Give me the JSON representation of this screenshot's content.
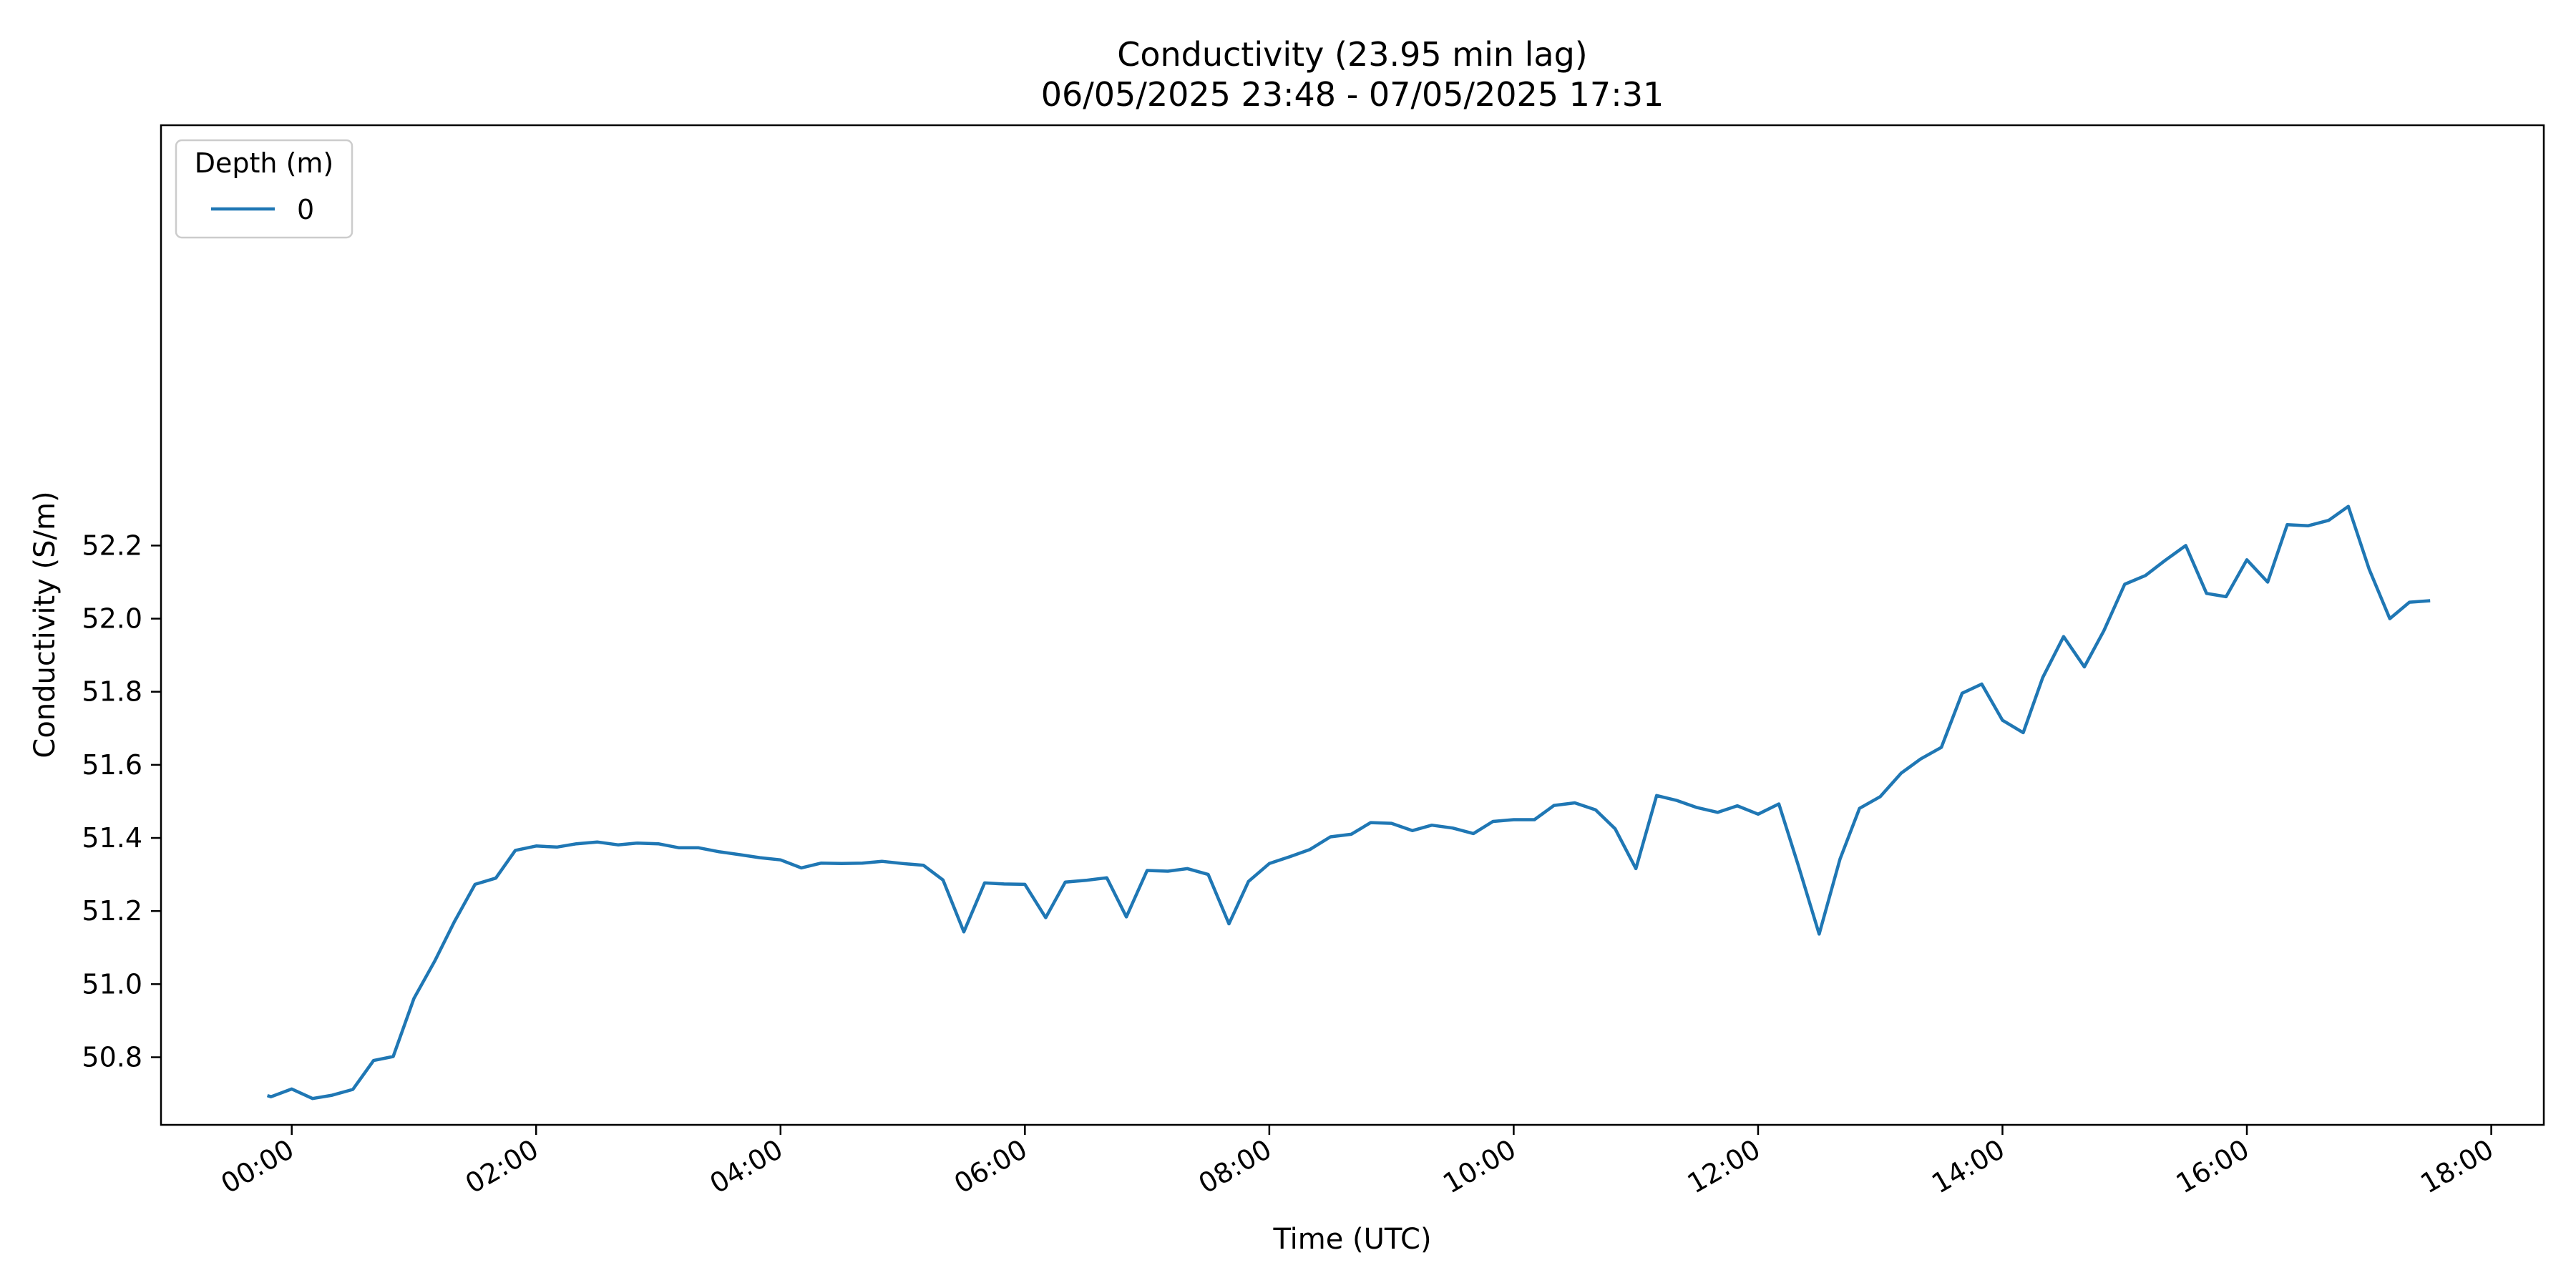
{
  "chart_data": {
    "type": "line",
    "title": "Conductivity (23.95 min lag)",
    "subtitle": "06/05/2025 23:48 - 07/05/2025 17:31",
    "xlabel": "Time (UTC)",
    "ylabel": "Conductivity (S/m)",
    "x_unit": "hours since 00:00 UTC",
    "xlim": [
      -1.07,
      18.43
    ],
    "ylim": [
      50.615,
      53.35
    ],
    "x_ticks": [
      0,
      2,
      4,
      6,
      8,
      10,
      12,
      14,
      16,
      18
    ],
    "x_tick_labels": [
      "00:00",
      "02:00",
      "04:00",
      "06:00",
      "08:00",
      "10:00",
      "12:00",
      "14:00",
      "16:00",
      "18:00"
    ],
    "y_ticks": [
      50.8,
      51.0,
      51.2,
      51.4,
      51.6,
      51.8,
      52.0,
      52.2
    ],
    "y_tick_labels": [
      "50.8",
      "51.0",
      "51.2",
      "51.4",
      "51.6",
      "51.8",
      "52.0",
      "52.2"
    ],
    "grid": false,
    "legend": {
      "title": "Depth (m)",
      "placement": "top-left"
    },
    "series": [
      {
        "name": "0",
        "color": "#1f77b4",
        "x": [
          -0.2,
          -0.17,
          0.0,
          0.17,
          0.33,
          0.5,
          0.67,
          0.83,
          1.0,
          1.17,
          1.33,
          1.5,
          1.67,
          1.83,
          2.0,
          2.17,
          2.33,
          2.5,
          2.67,
          2.83,
          3.0,
          3.17,
          3.33,
          3.5,
          3.67,
          3.83,
          4.0,
          4.17,
          4.33,
          4.5,
          4.67,
          4.83,
          5.0,
          5.17,
          5.33,
          5.5,
          5.67,
          5.83,
          6.0,
          6.17,
          6.33,
          6.5,
          6.67,
          6.83,
          7.0,
          7.17,
          7.33,
          7.5,
          7.67,
          7.83,
          8.0,
          8.17,
          8.33,
          8.5,
          8.67,
          8.83,
          9.0,
          9.17,
          9.33,
          9.5,
          9.67,
          9.83,
          10.0,
          10.17,
          10.33,
          10.5,
          10.67,
          10.83,
          11.0,
          11.17,
          11.33,
          11.5,
          11.67,
          11.83,
          12.0,
          12.17,
          12.33,
          12.5,
          12.67,
          12.83,
          13.0,
          13.17,
          13.33,
          13.5,
          13.67,
          13.83,
          14.0,
          14.17,
          14.33,
          14.5,
          14.67,
          14.83,
          15.0,
          15.17,
          15.33,
          15.5,
          15.67,
          15.83,
          16.0,
          16.17,
          16.33,
          16.5,
          16.67,
          16.83,
          17.0,
          17.17,
          17.33,
          17.5
        ],
        "y": [
          50.695,
          50.692,
          50.713,
          50.687,
          50.696,
          50.712,
          50.791,
          50.802,
          50.961,
          51.063,
          51.17,
          51.273,
          51.29,
          51.366,
          51.378,
          51.375,
          51.384,
          51.389,
          51.381,
          51.386,
          51.384,
          51.373,
          51.373,
          51.362,
          51.354,
          51.346,
          51.34,
          51.318,
          51.331,
          51.33,
          51.331,
          51.336,
          51.33,
          51.325,
          51.285,
          51.143,
          51.277,
          51.274,
          51.273,
          51.182,
          51.279,
          51.284,
          51.291,
          51.184,
          51.311,
          51.309,
          51.316,
          51.3,
          51.165,
          51.281,
          51.33,
          51.349,
          51.368,
          51.403,
          51.41,
          51.442,
          51.44,
          51.42,
          51.435,
          51.427,
          51.412,
          51.445,
          51.45,
          51.45,
          51.489,
          51.496,
          51.477,
          51.425,
          51.316,
          51.516,
          51.503,
          51.483,
          51.47,
          51.488,
          51.465,
          51.493,
          51.324,
          51.137,
          51.342,
          51.481,
          51.513,
          51.577,
          51.616,
          51.648,
          51.796,
          51.821,
          51.722,
          51.688,
          51.839,
          51.951,
          51.868,
          51.967,
          52.094,
          52.118,
          52.159,
          52.2,
          52.069,
          52.06,
          52.161,
          52.1,
          52.257,
          52.254,
          52.269,
          52.307,
          52.136,
          52.0,
          52.045,
          52.049
        ]
      }
    ]
  }
}
